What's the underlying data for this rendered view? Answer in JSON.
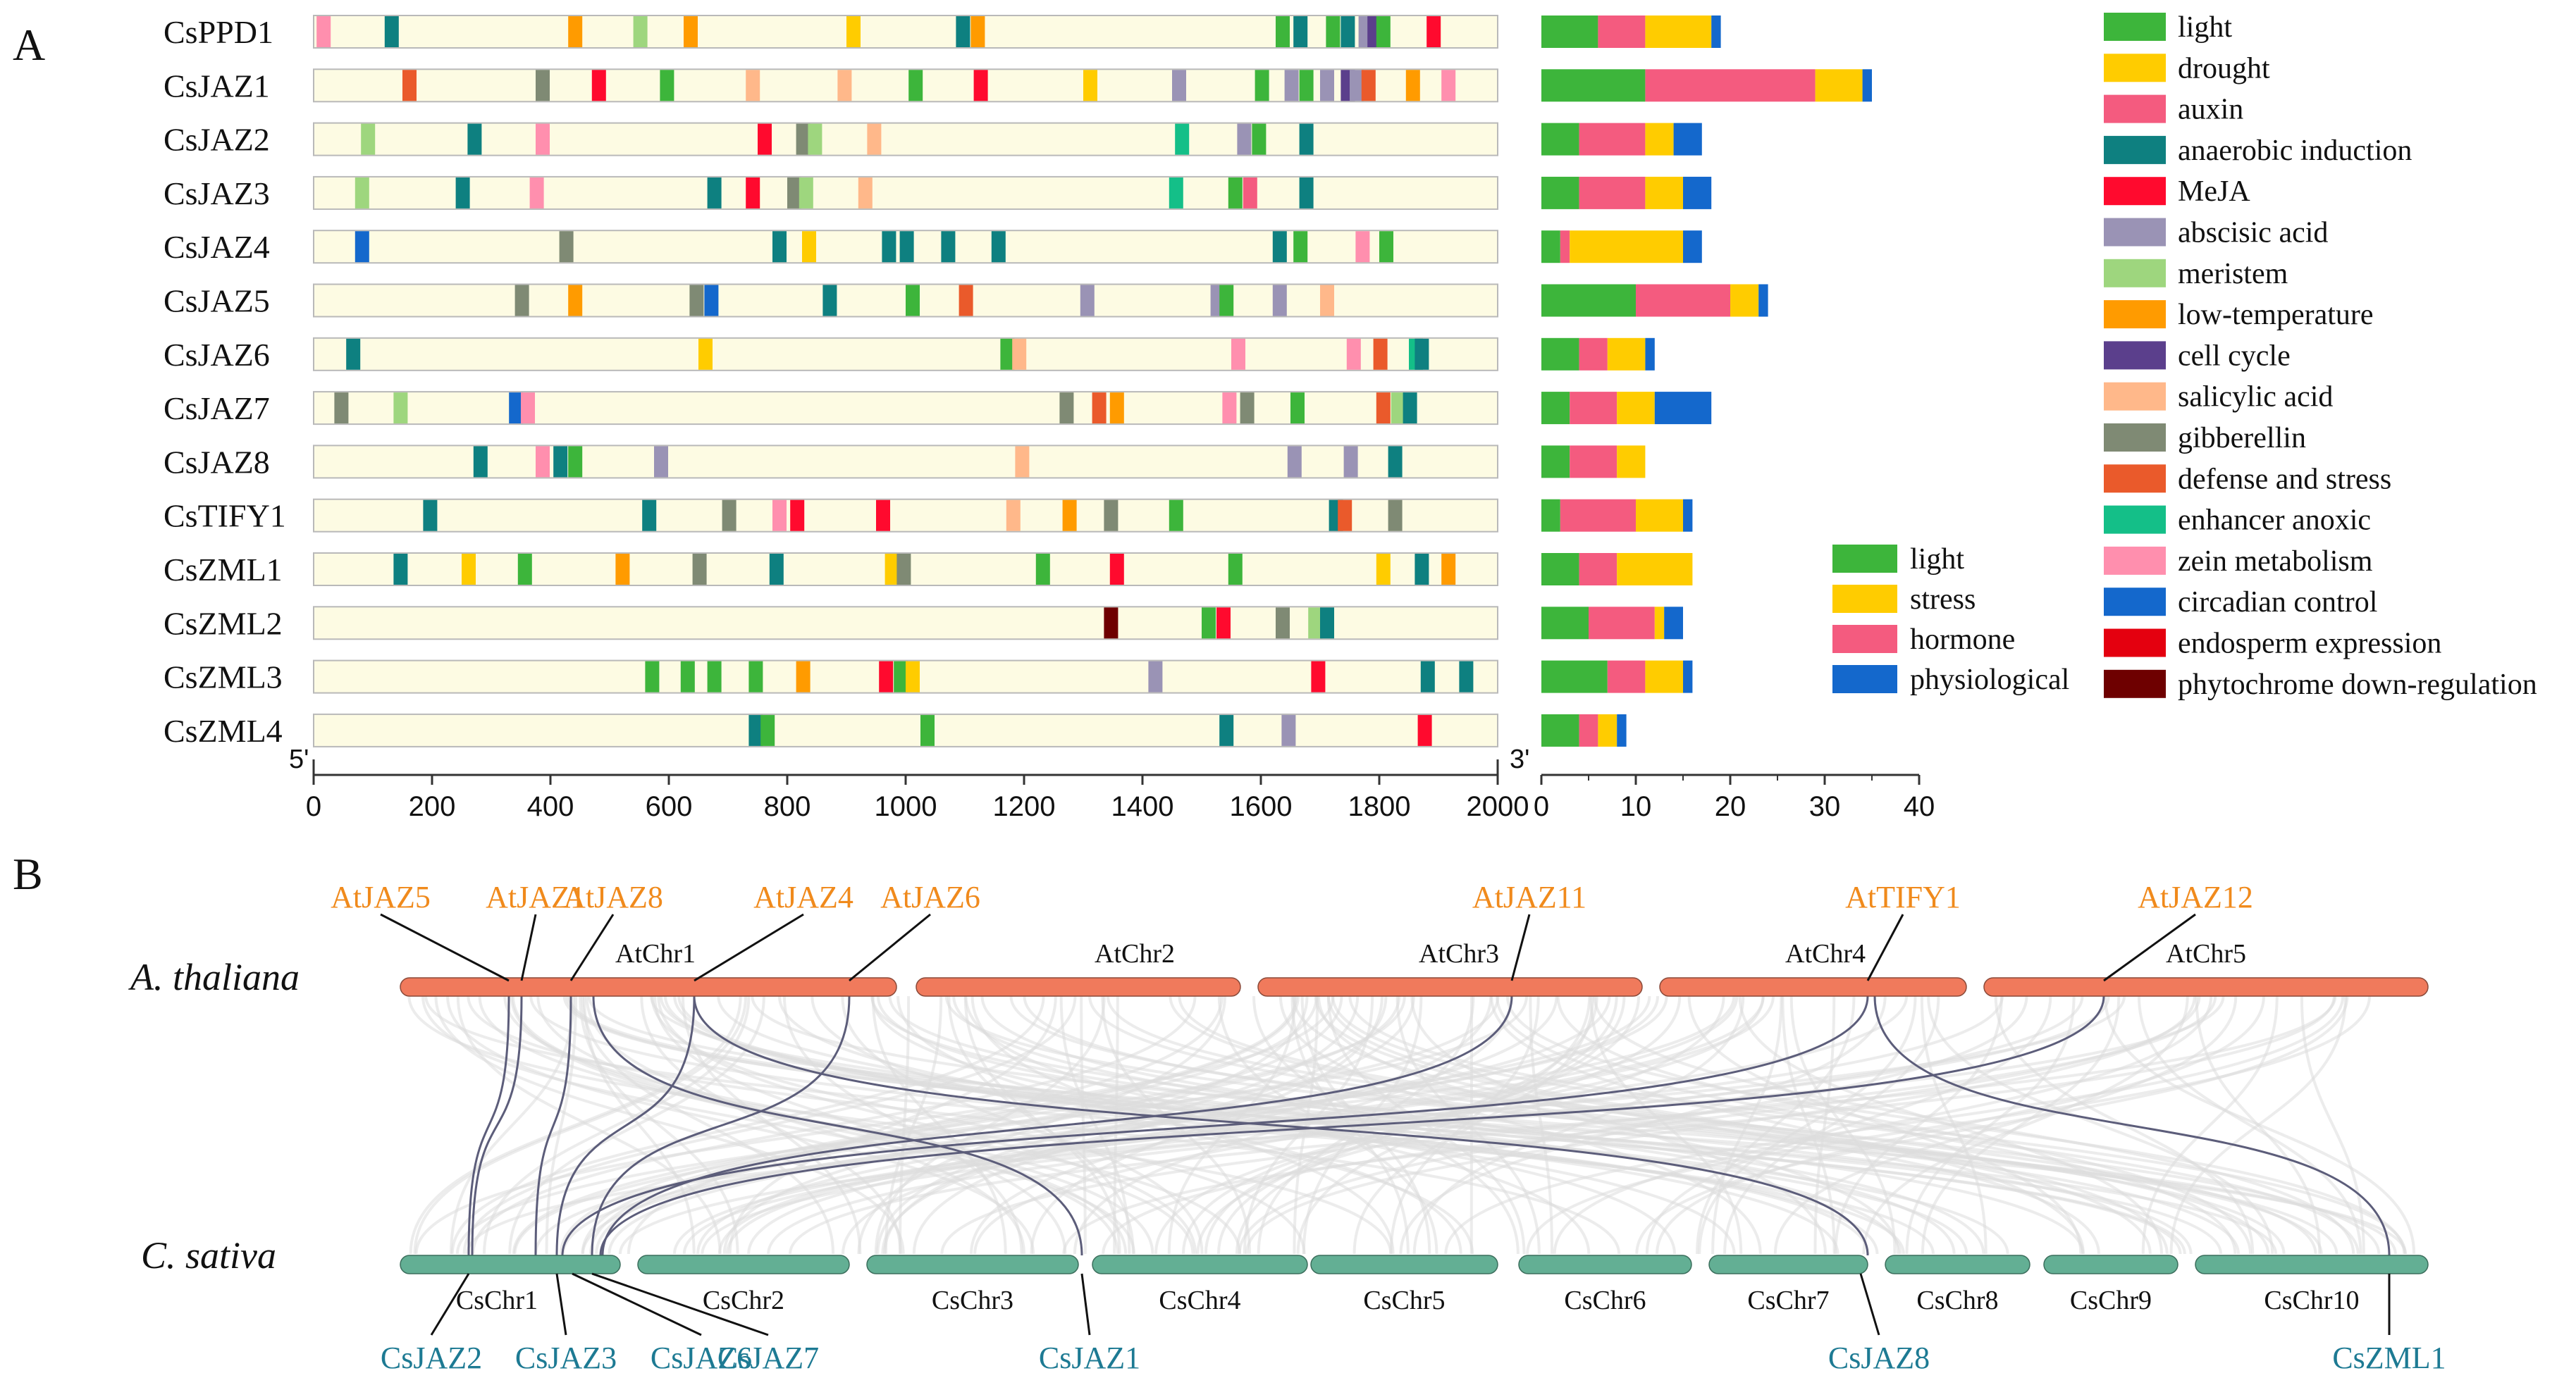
{
  "panel_labels": {
    "a": "A",
    "b": "B"
  },
  "chart_data": [
    {
      "type": "bar",
      "subtype": "promoter-element-map",
      "x_axis": {
        "min": 0,
        "max": 2000,
        "ticks": [
          0,
          200,
          400,
          600,
          800,
          1000,
          1200,
          1400,
          1600,
          1800,
          2000
        ],
        "start_label": "5'",
        "end_label": "3'"
      },
      "legend": [
        {
          "key": "light",
          "label": "light",
          "color": "#3DB53B"
        },
        {
          "key": "drought",
          "label": "drought",
          "color": "#FFCC00"
        },
        {
          "key": "auxin",
          "label": "auxin",
          "color": "#F45B7F"
        },
        {
          "key": "anaerobic",
          "label": "anaerobic induction",
          "color": "#0E8080"
        },
        {
          "key": "meja",
          "label": "MeJA",
          "color": "#FF0A2E"
        },
        {
          "key": "aba",
          "label": "abscisic acid",
          "color": "#9A93B5"
        },
        {
          "key": "meristem",
          "label": "meristem",
          "color": "#9ED67E"
        },
        {
          "key": "lowtemp",
          "label": "low-temperature",
          "color": "#FF9B00"
        },
        {
          "key": "cellcycle",
          "label": "cell cycle",
          "color": "#5B3F8C"
        },
        {
          "key": "sa",
          "label": "salicylic acid",
          "color": "#FFB88A"
        },
        {
          "key": "ga",
          "label": "gibberellin",
          "color": "#7F8A74"
        },
        {
          "key": "defense",
          "label": "defense and stress",
          "color": "#EA5A2B"
        },
        {
          "key": "enhancer",
          "label": "enhancer anoxic",
          "color": "#14BF88"
        },
        {
          "key": "zein",
          "label": "zein metabolism",
          "color": "#FF8FAE"
        },
        {
          "key": "circadian",
          "label": "circadian control",
          "color": "#1468CC"
        },
        {
          "key": "endosperm",
          "label": "endosperm expression",
          "color": "#E4000F"
        },
        {
          "key": "phyto",
          "label": "phytochrome down-regulation",
          "color": "#6E0000"
        }
      ],
      "genes": [
        {
          "name": "CsPPD1",
          "elements": [
            [
              "zein",
              5
            ],
            [
              "anaerobic",
              120
            ],
            [
              "lowtemp",
              430
            ],
            [
              "meristem",
              540
            ],
            [
              "lowtemp",
              625
            ],
            [
              "drought",
              900
            ],
            [
              "anaerobic",
              1085
            ],
            [
              "lowtemp",
              1110
            ],
            [
              "light",
              1625
            ],
            [
              "anaerobic",
              1655
            ],
            [
              "light",
              1710
            ],
            [
              "anaerobic",
              1735
            ],
            [
              "aba",
              1765
            ],
            [
              "cellcycle",
              1780
            ],
            [
              "light",
              1795
            ],
            [
              "meja",
              1880
            ]
          ]
        },
        {
          "name": "CsJAZ1",
          "elements": [
            [
              "defense",
              150
            ],
            [
              "ga",
              375
            ],
            [
              "meja",
              470
            ],
            [
              "light",
              585
            ],
            [
              "sa",
              730
            ],
            [
              "sa",
              885
            ],
            [
              "light",
              1005
            ],
            [
              "meja",
              1115
            ],
            [
              "drought",
              1300
            ],
            [
              "aba",
              1450
            ],
            [
              "light",
              1590
            ],
            [
              "aba",
              1640
            ],
            [
              "light",
              1665
            ],
            [
              "aba",
              1700
            ],
            [
              "cellcycle",
              1735
            ],
            [
              "aba",
              1750
            ],
            [
              "defense",
              1770
            ],
            [
              "lowtemp",
              1845
            ],
            [
              "zein",
              1905
            ]
          ]
        },
        {
          "name": "CsJAZ2",
          "elements": [
            [
              "meristem",
              80
            ],
            [
              "anaerobic",
              260
            ],
            [
              "zein",
              375
            ],
            [
              "meja",
              750
            ],
            [
              "ga",
              815
            ],
            [
              "meristem",
              835
            ],
            [
              "sa",
              935
            ],
            [
              "enhancer",
              1455
            ],
            [
              "aba",
              1560
            ],
            [
              "light",
              1585
            ],
            [
              "anaerobic",
              1665
            ]
          ]
        },
        {
          "name": "CsJAZ3",
          "elements": [
            [
              "meristem",
              70
            ],
            [
              "anaerobic",
              240
            ],
            [
              "zein",
              365
            ],
            [
              "anaerobic",
              665
            ],
            [
              "meja",
              730
            ],
            [
              "ga",
              800
            ],
            [
              "meristem",
              820
            ],
            [
              "sa",
              920
            ],
            [
              "enhancer",
              1445
            ],
            [
              "light",
              1545
            ],
            [
              "auxin",
              1570
            ],
            [
              "anaerobic",
              1665
            ]
          ]
        },
        {
          "name": "CsJAZ4",
          "elements": [
            [
              "circadian",
              70
            ],
            [
              "ga",
              415
            ],
            [
              "anaerobic",
              775
            ],
            [
              "drought",
              825
            ],
            [
              "anaerobic",
              960
            ],
            [
              "anaerobic",
              990
            ],
            [
              "anaerobic",
              1060
            ],
            [
              "anaerobic",
              1145
            ],
            [
              "anaerobic",
              1620
            ],
            [
              "light",
              1655
            ],
            [
              "zein",
              1760
            ],
            [
              "light",
              1800
            ]
          ]
        },
        {
          "name": "CsJAZ5",
          "elements": [
            [
              "ga",
              340
            ],
            [
              "lowtemp",
              430
            ],
            [
              "ga",
              635
            ],
            [
              "circadian",
              660
            ],
            [
              "anaerobic",
              860
            ],
            [
              "light",
              1000
            ],
            [
              "defense",
              1090
            ],
            [
              "aba",
              1295
            ],
            [
              "aba",
              1515
            ],
            [
              "light",
              1530
            ],
            [
              "aba",
              1620
            ],
            [
              "sa",
              1700
            ]
          ]
        },
        {
          "name": "CsJAZ6",
          "elements": [
            [
              "anaerobic",
              55
            ],
            [
              "drought",
              650
            ],
            [
              "light",
              1160
            ],
            [
              "sa",
              1180
            ],
            [
              "zein",
              1550
            ],
            [
              "zein",
              1745
            ],
            [
              "defense",
              1790
            ],
            [
              "enhancer",
              1850
            ],
            [
              "anaerobic",
              1860
            ]
          ]
        },
        {
          "name": "CsJAZ7",
          "elements": [
            [
              "ga",
              35
            ],
            [
              "meristem",
              135
            ],
            [
              "circadian",
              330
            ],
            [
              "zein",
              350
            ],
            [
              "ga",
              1260
            ],
            [
              "defense",
              1315
            ],
            [
              "lowtemp",
              1345
            ],
            [
              "zein",
              1535
            ],
            [
              "ga",
              1565
            ],
            [
              "light",
              1650
            ],
            [
              "defense",
              1795
            ],
            [
              "meristem",
              1820
            ],
            [
              "anaerobic",
              1840
            ]
          ]
        },
        {
          "name": "CsJAZ8",
          "elements": [
            [
              "anaerobic",
              270
            ],
            [
              "zein",
              375
            ],
            [
              "anaerobic",
              405
            ],
            [
              "light",
              430
            ],
            [
              "aba",
              575
            ],
            [
              "sa",
              1185
            ],
            [
              "aba",
              1645
            ],
            [
              "aba",
              1740
            ],
            [
              "anaerobic",
              1815
            ]
          ]
        },
        {
          "name": "CsTIFY1",
          "elements": [
            [
              "anaerobic",
              185
            ],
            [
              "anaerobic",
              555
            ],
            [
              "ga",
              690
            ],
            [
              "zein",
              775
            ],
            [
              "meja",
              805
            ],
            [
              "meja",
              950
            ],
            [
              "sa",
              1170
            ],
            [
              "lowtemp",
              1265
            ],
            [
              "ga",
              1335
            ],
            [
              "light",
              1445
            ],
            [
              "anaerobic",
              1715
            ],
            [
              "defense",
              1730
            ],
            [
              "ga",
              1815
            ]
          ]
        },
        {
          "name": "CsZML1",
          "elements": [
            [
              "anaerobic",
              135
            ],
            [
              "drought",
              250
            ],
            [
              "light",
              345
            ],
            [
              "lowtemp",
              510
            ],
            [
              "ga",
              640
            ],
            [
              "anaerobic",
              770
            ],
            [
              "drought",
              965
            ],
            [
              "ga",
              985
            ],
            [
              "light",
              1220
            ],
            [
              "meja",
              1345
            ],
            [
              "light",
              1545
            ],
            [
              "drought",
              1795
            ],
            [
              "anaerobic",
              1860
            ],
            [
              "lowtemp",
              1905
            ]
          ]
        },
        {
          "name": "CsZML2",
          "elements": [
            [
              "phyto",
              1335
            ],
            [
              "light",
              1500
            ],
            [
              "meja",
              1525
            ],
            [
              "ga",
              1625
            ],
            [
              "meristem",
              1680
            ],
            [
              "anaerobic",
              1700
            ]
          ]
        },
        {
          "name": "CsZML3",
          "elements": [
            [
              "light",
              560
            ],
            [
              "light",
              620
            ],
            [
              "light",
              665
            ],
            [
              "light",
              735
            ],
            [
              "lowtemp",
              815
            ],
            [
              "meja",
              955
            ],
            [
              "light",
              980
            ],
            [
              "drought",
              1000
            ],
            [
              "aba",
              1410
            ],
            [
              "meja",
              1685
            ],
            [
              "anaerobic",
              1870
            ],
            [
              "anaerobic",
              1935
            ]
          ]
        },
        {
          "name": "CsZML4",
          "elements": [
            [
              "anaerobic",
              735
            ],
            [
              "light",
              755
            ],
            [
              "light",
              1025
            ],
            [
              "anaerobic",
              1530
            ],
            [
              "aba",
              1635
            ],
            [
              "meja",
              1865
            ]
          ]
        }
      ]
    },
    {
      "type": "bar",
      "subtype": "stacked-horizontal",
      "x_axis": {
        "min": 0,
        "max": 40,
        "ticks": [
          0,
          10,
          20,
          30,
          40
        ]
      },
      "legend": [
        {
          "key": "light",
          "label": "light",
          "color": "#3DB53B"
        },
        {
          "key": "stress",
          "label": "stress",
          "color": "#FFCC00"
        },
        {
          "key": "hormone",
          "label": "hormone",
          "color": "#F45B7F"
        },
        {
          "key": "physiological",
          "label": "physiological",
          "color": "#1468CC"
        }
      ],
      "categories": [
        "CsPPD1",
        "CsJAZ1",
        "CsJAZ2",
        "CsJAZ3",
        "CsJAZ4",
        "CsJAZ5",
        "CsJAZ6",
        "CsJAZ7",
        "CsJAZ8",
        "CsTIFY1",
        "CsZML1",
        "CsZML2",
        "CsZML3",
        "CsZML4"
      ],
      "series": [
        {
          "name": "light",
          "values": [
            6,
            11,
            4,
            4,
            2,
            10,
            4,
            3,
            3,
            2,
            4,
            5,
            7,
            4
          ]
        },
        {
          "name": "hormone",
          "values": [
            5,
            18,
            7,
            7,
            1,
            10,
            3,
            5,
            5,
            8,
            4,
            7,
            4,
            2
          ]
        },
        {
          "name": "stress",
          "values": [
            7,
            5,
            3,
            4,
            12,
            3,
            4,
            4,
            3,
            5,
            8,
            1,
            4,
            2
          ]
        },
        {
          "name": "physiological",
          "values": [
            1,
            1,
            3,
            3,
            2,
            1,
            1,
            6,
            0,
            1,
            0,
            2,
            1,
            1
          ]
        }
      ]
    },
    {
      "type": "diagram",
      "subtype": "synteny",
      "species_top": "A. thaliana",
      "species_bottom": "C. sativa",
      "top_chromosomes": [
        "AtChr1",
        "AtChr2",
        "AtChr3",
        "AtChr4",
        "AtChr5"
      ],
      "bottom_chromosomes": [
        "CsChr1",
        "CsChr2",
        "CsChr3",
        "CsChr4",
        "CsChr5",
        "CsChr6",
        "CsChr7",
        "CsChr8",
        "CsChr9",
        "CsChr10"
      ],
      "top_genes": [
        "AtJAZ5",
        "AtJAZ1",
        "AtJAZ8",
        "AtJAZ4",
        "AtJAZ6",
        "AtJAZ11",
        "AtTIFY1",
        "AtJAZ12"
      ],
      "bottom_genes": [
        "CsJAZ2",
        "CsJAZ3",
        "CsJAZ6",
        "CsJAZ7",
        "CsJAZ1",
        "CsJAZ8",
        "CsZML1"
      ],
      "colors": {
        "top_chr": "#F07A5C",
        "bottom_chr": "#63AF94",
        "at_label": "#F08A1C",
        "cs_label": "#1D7A93",
        "link": "#5C5D7A",
        "background_link": "#DCDCDC"
      }
    }
  ]
}
